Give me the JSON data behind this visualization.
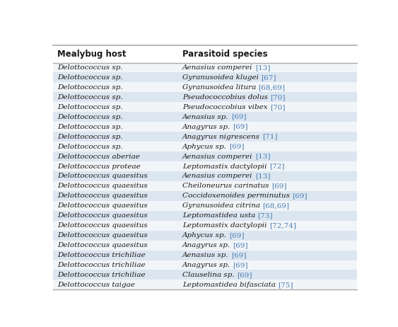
{
  "col1_header": "Mealybug host",
  "col2_header": "Parasitoid species",
  "rows": [
    [
      "Delottococcus sp.",
      "Aenasius comperei",
      "[13]"
    ],
    [
      "Delottococcus sp.",
      "Gyranusoidea klugei",
      "[67]"
    ],
    [
      "Delottococcus sp.",
      "Gyranusoidea litura",
      "[68,69]"
    ],
    [
      "Delottococcus sp.",
      "Pseudococcobius dolus",
      "[70]"
    ],
    [
      "Delottococcus sp.",
      "Pseudococcobius vibex",
      "[70]"
    ],
    [
      "Delottococcus sp.",
      "Aenasius sp.",
      "[69]"
    ],
    [
      "Delottococcus sp.",
      "Anagyrus sp.",
      "[69]"
    ],
    [
      "Delottococcus sp.",
      "Anagyrus nigrescens",
      "[71]"
    ],
    [
      "Delottococcus sp.",
      "Aphycus sp.",
      "[69]"
    ],
    [
      "Delottococcus aberiae",
      "Aenasius comperei",
      "[13]"
    ],
    [
      "Delottococcus proteae",
      "Leptomastix dactylopii",
      "[72]"
    ],
    [
      "Delottococcus quaesitus",
      "Aenasius comperei",
      "[13]"
    ],
    [
      "Delottococcus quaesitus",
      "Cheiloneurus carinatus",
      "[69]"
    ],
    [
      "Delottococcus quaesitus",
      "Coccidoxenoides perminutus",
      "[69]"
    ],
    [
      "Delottococcus quaesitus",
      "Gyranusoidea citrina",
      "[68,69]"
    ],
    [
      "Delottococcus quaesitus",
      "Leptomastidea usta",
      "[73]"
    ],
    [
      "Delottococcus quaesitus",
      "Leptomastix dactylopii",
      "[72,74]"
    ],
    [
      "Delottococcus quaesitus",
      "Aphycus sp.",
      "[69]"
    ],
    [
      "Delottococcus quaesitus",
      "Anagyrus sp.",
      "[69]"
    ],
    [
      "Delottococcus trichiliae",
      "Aenasius sp.",
      "[69]"
    ],
    [
      "Delottococcus trichiliae",
      "Anagyrus sp.",
      "[69]"
    ],
    [
      "Delottococcus trichiliae",
      "Clauselina sp.",
      "[69]"
    ],
    [
      "Delottococcus taigae",
      "Leptomastidea bifasciata",
      "[75]"
    ]
  ],
  "ref_color": "#4a7fb5",
  "header_bg": "#ffffff",
  "row_bg_even": "#dce6f0",
  "row_bg_odd": "#f2f5f8",
  "header_text_color": "#1a1a1a",
  "cell_text_color": "#1a1a1a",
  "border_color": "#aaaaaa",
  "header_font_size": 8.5,
  "cell_font_size": 7.5,
  "fig_width": 5.63,
  "fig_height": 4.62,
  "col_split": 0.415
}
